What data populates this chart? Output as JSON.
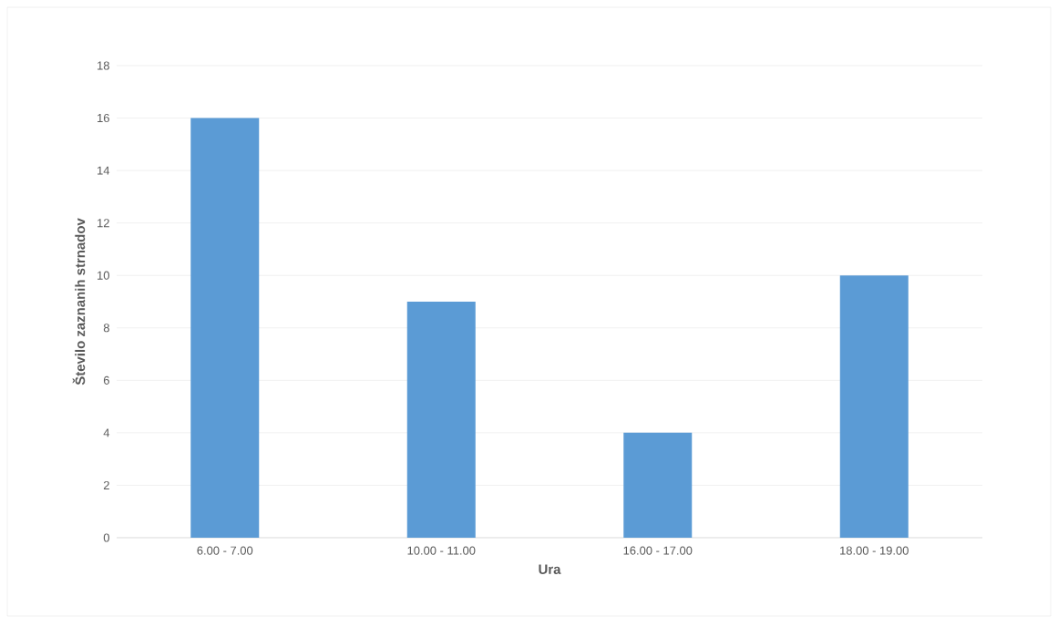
{
  "chart_data": {
    "type": "bar",
    "xlabel": "Ura",
    "ylabel": "Število zaznanih strnadov",
    "categories": [
      "6.00 - 7.00",
      "10.00 - 11.00",
      "16.00 - 17.00",
      "18.00 - 19.00"
    ],
    "values": [
      16,
      9,
      4,
      10
    ],
    "color": "#5b9bd5",
    "ylim": [
      0,
      18
    ],
    "yticks": [
      0,
      2,
      4,
      6,
      8,
      10,
      12,
      14,
      16,
      18
    ],
    "grid": "y"
  }
}
